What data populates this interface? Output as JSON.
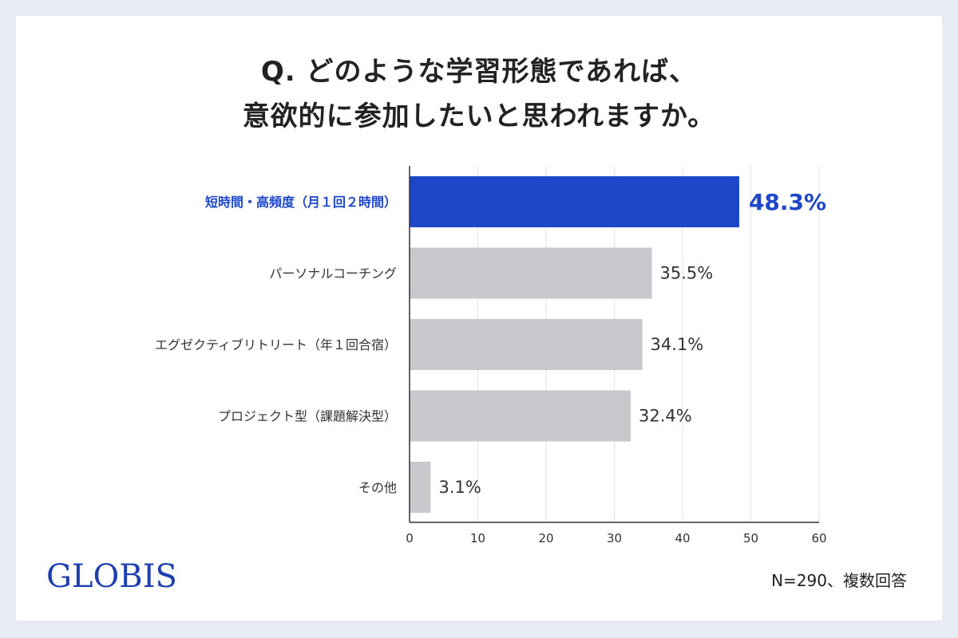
{
  "title": {
    "line1": "Q. どのような学習形態であれば、",
    "line2": "意欲的に参加したいと思われますか。"
  },
  "logo": "GLOBIS",
  "note": "N=290、複数回答",
  "colors": {
    "highlight": "#1d46c8",
    "bar": "#c9c9cd",
    "label": "#333333",
    "grid": "#e3e3e3",
    "axis": "#333333"
  },
  "chart_data": {
    "type": "bar",
    "orientation": "horizontal",
    "categories": [
      "短時間・高頻度（月１回２時間）",
      "パーソナルコーチング",
      "エグゼクティブリトリート（年１回合宿）",
      "プロジェクト型（課題解決型）",
      "その他"
    ],
    "values": [
      48.3,
      35.5,
      34.1,
      32.4,
      3.1
    ],
    "data_labels": [
      "48.3%",
      "35.5%",
      "34.1%",
      "32.4%",
      "3.1%"
    ],
    "highlight_index": 0,
    "xlim": [
      0,
      60
    ],
    "xticks": [
      0,
      10,
      20,
      30,
      40,
      50,
      60
    ],
    "grid": "vertical",
    "legend": "none"
  }
}
